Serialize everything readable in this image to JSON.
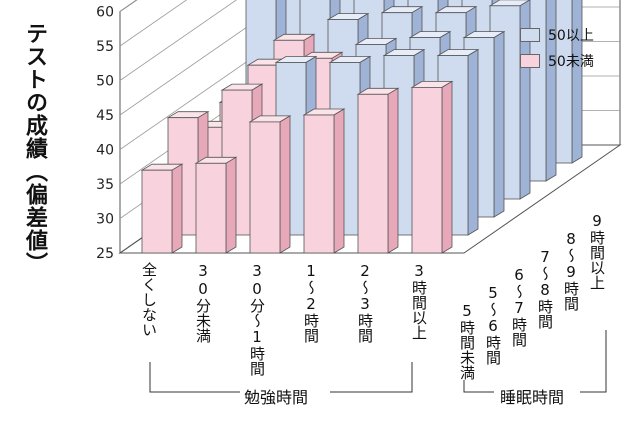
{
  "chart_data": {
    "type": "bar",
    "ylabel": "テストの成績（偏差値）",
    "ylim": [
      25,
      60
    ],
    "yticks": [
      "60",
      "55",
      "50",
      "45",
      "40",
      "35",
      "30",
      "25"
    ],
    "x_group_label": "勉強時間",
    "z_group_label": "睡眠時間",
    "categories": [
      "全くしない",
      "30分未満",
      "30分〜1時間",
      "1〜2時間",
      "2〜3時間",
      "3時間以上"
    ],
    "depth_categories": [
      "5時間未満",
      "5〜6時間",
      "6〜7時間",
      "7〜8時間",
      "8〜9時間",
      "9時間以上"
    ],
    "legend": [
      {
        "label": "50以上",
        "color": "#cfdcf0"
      },
      {
        "label": "50未満",
        "color": "#f8d2dc"
      }
    ],
    "colors": {
      "high": "#cfdcf0",
      "low": "#f8d2dc",
      "line": "#555555"
    },
    "threshold": 50,
    "values": [
      [
        37,
        38,
        44,
        45,
        48,
        49
      ],
      [
        42,
        46,
        50,
        50,
        51,
        51
      ],
      [
        38,
        47,
        48,
        50,
        51,
        51
      ],
      [
        39,
        48,
        51,
        52,
        52,
        53
      ],
      [
        52,
        53,
        53,
        53,
        53,
        54
      ],
      [
        52,
        53,
        54,
        54,
        55,
        56
      ]
    ]
  }
}
